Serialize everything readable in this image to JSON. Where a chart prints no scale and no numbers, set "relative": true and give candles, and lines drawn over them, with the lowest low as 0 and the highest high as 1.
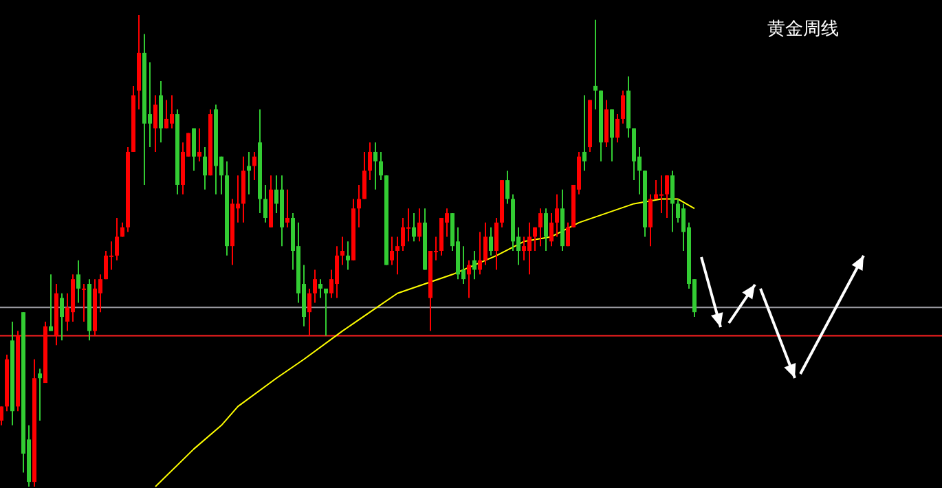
{
  "chart_data": {
    "type": "candlestick",
    "title": "黄金周线",
    "relative": true,
    "tick_labels": false,
    "categories": [
      null,
      null,
      null,
      null,
      null,
      null,
      null,
      null,
      null,
      null,
      null,
      null,
      null,
      null,
      null,
      null,
      null,
      null,
      null,
      null,
      null,
      null,
      null,
      null,
      null,
      null,
      null,
      null,
      null,
      null,
      null,
      null,
      null,
      null,
      null,
      null,
      null,
      null,
      null,
      null,
      null,
      null,
      null,
      null,
      null,
      null,
      null,
      null,
      null,
      null,
      null,
      null,
      null,
      null,
      null,
      null,
      null,
      null,
      null,
      null,
      null,
      null,
      null,
      null,
      null,
      null,
      null,
      null,
      null,
      null,
      null,
      null,
      null,
      null,
      null,
      null,
      null,
      null,
      null,
      null,
      null,
      null,
      null,
      null,
      null,
      null,
      null,
      null,
      null,
      null,
      null,
      null,
      null,
      null,
      null,
      null,
      null,
      null,
      null,
      null,
      null,
      null,
      null,
      null,
      null,
      null,
      null,
      null,
      null,
      null,
      null,
      null,
      null,
      null,
      null,
      null,
      null,
      null,
      null,
      null,
      null,
      null,
      null,
      null,
      null,
      null,
      null
    ],
    "ohlc": [
      [
        0.14,
        0.17,
        0.13,
        0.17
      ],
      [
        0.17,
        0.28,
        0.16,
        0.27
      ],
      [
        0.31,
        0.35,
        0.13,
        0.16
      ],
      [
        0.17,
        0.33,
        0.16,
        0.32
      ],
      [
        0.37,
        0.37,
        0.03,
        0.07
      ],
      [
        0.1,
        0.13,
        0,
        0.01
      ],
      [
        0.01,
        0.27,
        0,
        0.23
      ],
      [
        0.24,
        0.25,
        0.14,
        0.23
      ],
      [
        0.22,
        0.35,
        0.22,
        0.34
      ],
      [
        0.34,
        0.45,
        0.33,
        0.33
      ],
      [
        0.32,
        0.43,
        0.3,
        0.41
      ],
      [
        0.4,
        0.41,
        0.31,
        0.36
      ],
      [
        0.35,
        0.41,
        0.33,
        0.38
      ],
      [
        0.37,
        0.45,
        0.35,
        0.44
      ],
      [
        0.45,
        0.48,
        0.39,
        0.42
      ],
      [
        0.42,
        0.43,
        0.35,
        0.42
      ],
      [
        0.43,
        0.44,
        0.31,
        0.33
      ],
      [
        0.33,
        0.44,
        0.32,
        0.42
      ],
      [
        0.41,
        0.45,
        0.37,
        0.44
      ],
      [
        0.44,
        0.5,
        0.44,
        0.49
      ],
      [
        0.49,
        0.52,
        0.46,
        0.49
      ],
      [
        0.49,
        0.57,
        0.48,
        0.53
      ],
      [
        0.53,
        0.56,
        0.53,
        0.55
      ],
      [
        0.55,
        0.72,
        0.54,
        0.71
      ],
      [
        0.71,
        0.85,
        0.71,
        0.83
      ],
      [
        0.84,
        1,
        0.8,
        0.92
      ],
      [
        0.92,
        0.96,
        0.64,
        0.77
      ],
      [
        0.79,
        0.9,
        0.72,
        0.77
      ],
      [
        0.76,
        0.83,
        0.71,
        0.81
      ],
      [
        0.83,
        0.86,
        0.73,
        0.76
      ],
      [
        0.76,
        0.82,
        0.76,
        0.78
      ],
      [
        0.77,
        0.83,
        0.76,
        0.79
      ],
      [
        0.79,
        0.8,
        0.62,
        0.64
      ],
      [
        0.64,
        0.73,
        0.62,
        0.71
      ],
      [
        0.7,
        0.75,
        0.7,
        0.75
      ],
      [
        0.76,
        0.76,
        0.67,
        0.7
      ],
      [
        0.7,
        0.76,
        0.69,
        0.71
      ],
      [
        0.7,
        0.72,
        0.63,
        0.66
      ],
      [
        0.66,
        0.8,
        0.66,
        0.79
      ],
      [
        0.8,
        0.81,
        0.62,
        0.68
      ],
      [
        0.7,
        0.7,
        0.62,
        0.66
      ],
      [
        0.66,
        0.69,
        0.49,
        0.51
      ],
      [
        0.51,
        0.61,
        0.47,
        0.6
      ],
      [
        0.59,
        0.66,
        0.56,
        0.6
      ],
      [
        0.6,
        0.7,
        0.56,
        0.67
      ],
      [
        0.68,
        0.71,
        0.62,
        0.67
      ],
      [
        0.68,
        0.71,
        0.65,
        0.7
      ],
      [
        0.73,
        0.8,
        0.58,
        0.61
      ],
      [
        0.61,
        0.64,
        0.56,
        0.57
      ],
      [
        0.55,
        0.66,
        0.55,
        0.63
      ],
      [
        0.63,
        0.66,
        0.58,
        0.6
      ],
      [
        0.63,
        0.66,
        0.51,
        0.55
      ],
      [
        0.56,
        0.63,
        0.55,
        0.57
      ],
      [
        0.57,
        0.58,
        0.46,
        0.5
      ],
      [
        0.51,
        0.56,
        0.39,
        0.41
      ],
      [
        0.43,
        0.47,
        0.34,
        0.36
      ],
      [
        0.37,
        0.42,
        0.32,
        0.41
      ],
      [
        0.41,
        0.46,
        0.39,
        0.44
      ],
      [
        0.43,
        0.44,
        0.4,
        0.42
      ],
      [
        0.42,
        0.42,
        0.32,
        0.41
      ],
      [
        0.41,
        0.46,
        0.4,
        0.44
      ],
      [
        0.43,
        0.51,
        0.4,
        0.49
      ],
      [
        0.49,
        0.53,
        0.47,
        0.5
      ],
      [
        0.49,
        0.52,
        0.46,
        0.48
      ],
      [
        0.48,
        0.61,
        0.48,
        0.59
      ],
      [
        0.59,
        0.64,
        0.55,
        0.61
      ],
      [
        0.61,
        0.71,
        0.61,
        0.67
      ],
      [
        0.67,
        0.73,
        0.65,
        0.71
      ],
      [
        0.71,
        0.73,
        0.63,
        0.69
      ],
      [
        0.69,
        0.71,
        0.65,
        0.66
      ],
      [
        0.66,
        0.66,
        0.47,
        0.47
      ],
      [
        0.48,
        0.53,
        0.47,
        0.5
      ],
      [
        0.5,
        0.53,
        0.45,
        0.51
      ],
      [
        0.51,
        0.57,
        0.5,
        0.55
      ],
      [
        0.55,
        0.59,
        0.52,
        0.55
      ],
      [
        0.55,
        0.58,
        0.52,
        0.53
      ],
      [
        0.53,
        0.59,
        0.52,
        0.56
      ],
      [
        0.56,
        0.59,
        0.46,
        0.46
      ],
      [
        0.4,
        0.5,
        0.33,
        0.5
      ],
      [
        0.5,
        0.53,
        0.48,
        0.5
      ],
      [
        0.5,
        0.57,
        0.49,
        0.57
      ],
      [
        0.56,
        0.59,
        0.53,
        0.58
      ],
      [
        0.58,
        0.58,
        0.5,
        0.51
      ],
      [
        0.52,
        0.55,
        0.44,
        0.45
      ],
      [
        0.46,
        0.51,
        0.43,
        0.44
      ],
      [
        0.45,
        0.48,
        0.4,
        0.47
      ],
      [
        0.48,
        0.5,
        0.44,
        0.46
      ],
      [
        0.46,
        0.54,
        0.45,
        0.48
      ],
      [
        0.48,
        0.56,
        0.47,
        0.53
      ],
      [
        0.53,
        0.55,
        0.49,
        0.5
      ],
      [
        0.5,
        0.57,
        0.46,
        0.56
      ],
      [
        0.56,
        0.65,
        0.55,
        0.65
      ],
      [
        0.65,
        0.67,
        0.6,
        0.61
      ],
      [
        0.61,
        0.62,
        0.5,
        0.52
      ],
      [
        0.53,
        0.55,
        0.47,
        0.5
      ],
      [
        0.5,
        0.53,
        0.48,
        0.51
      ],
      [
        0.5,
        0.56,
        0.45,
        0.53
      ],
      [
        0.53,
        0.55,
        0.5,
        0.55
      ],
      [
        0.55,
        0.59,
        0.51,
        0.58
      ],
      [
        0.58,
        0.59,
        0.5,
        0.53
      ],
      [
        0.52,
        0.58,
        0.51,
        0.56
      ],
      [
        0.56,
        0.62,
        0.53,
        0.59
      ],
      [
        0.59,
        0.63,
        0.5,
        0.51
      ],
      [
        0.51,
        0.56,
        0.51,
        0.55
      ],
      [
        0.55,
        0.64,
        0.55,
        0.64
      ],
      [
        0.63,
        0.71,
        0.62,
        0.7
      ],
      [
        0.71,
        0.83,
        0.67,
        0.69
      ],
      [
        0.72,
        0.82,
        0.71,
        0.82
      ],
      [
        0.85,
        0.99,
        0.8,
        0.84
      ],
      [
        0.84,
        0.84,
        0.69,
        0.73
      ],
      [
        0.73,
        0.82,
        0.72,
        0.8
      ],
      [
        0.8,
        0.8,
        0.69,
        0.74
      ],
      [
        0.74,
        0.79,
        0.73,
        0.78
      ],
      [
        0.78,
        0.84,
        0.77,
        0.83
      ],
      [
        0.84,
        0.87,
        0.74,
        0.76
      ],
      [
        0.76,
        0.76,
        0.65,
        0.69
      ],
      [
        0.7,
        0.72,
        0.62,
        0.67
      ],
      [
        0.67,
        0.67,
        0.53,
        0.55
      ],
      [
        0.55,
        0.62,
        0.51,
        0.61
      ],
      [
        0.61,
        0.65,
        0.61,
        0.62
      ],
      [
        0.62,
        0.66,
        0.58,
        0.62
      ],
      [
        0.62,
        0.66,
        0.57,
        0.66
      ],
      [
        0.66,
        0.67,
        0.54,
        0.6
      ],
      [
        0.6,
        0.61,
        0.56,
        0.57
      ],
      [
        0.59,
        0.6,
        0.5,
        0.54
      ],
      [
        0.55,
        0.56,
        0.42,
        0.43
      ],
      [
        0.44,
        0.44,
        0.36,
        0.37
      ]
    ],
    "series": [
      {
        "type": "line",
        "color": "#ffff00",
        "values": [
          null,
          null,
          null,
          null,
          null,
          null,
          null,
          null,
          null,
          null,
          null,
          null,
          null,
          null,
          null,
          null,
          null,
          null,
          null,
          null,
          null,
          null,
          null,
          null,
          null,
          null,
          null,
          null,
          0,
          null,
          null,
          null,
          null,
          null,
          null,
          0.08,
          null,
          null,
          null,
          null,
          0.13,
          null,
          null,
          0.17,
          null,
          null,
          null,
          null,
          null,
          null,
          0.23,
          null,
          null,
          null,
          null,
          0.27,
          null,
          null,
          null,
          null,
          null,
          null,
          0.33,
          null,
          null,
          null,
          null,
          0.37,
          null,
          null,
          null,
          null,
          0.41,
          null,
          null,
          null,
          null,
          0.43,
          null,
          null,
          null,
          null,
          0.45,
          null,
          null,
          null,
          0.47,
          null,
          null,
          null,
          0.49,
          null,
          null,
          null,
          null,
          0.52,
          null,
          null,
          null,
          null,
          0.53,
          null,
          null,
          null,
          null,
          0.56,
          null,
          null,
          null,
          null,
          0.58,
          null,
          null,
          null,
          null,
          0.6,
          null,
          null,
          null,
          null,
          0.61,
          null,
          null,
          0.61,
          null,
          null,
          0.59
        ]
      }
    ],
    "ref_lines": [
      {
        "axis": "y",
        "value": 0.38,
        "color": "#9a9aa2"
      },
      {
        "axis": "y",
        "value": 0.32,
        "color": "#ff2020"
      }
    ]
  }
}
